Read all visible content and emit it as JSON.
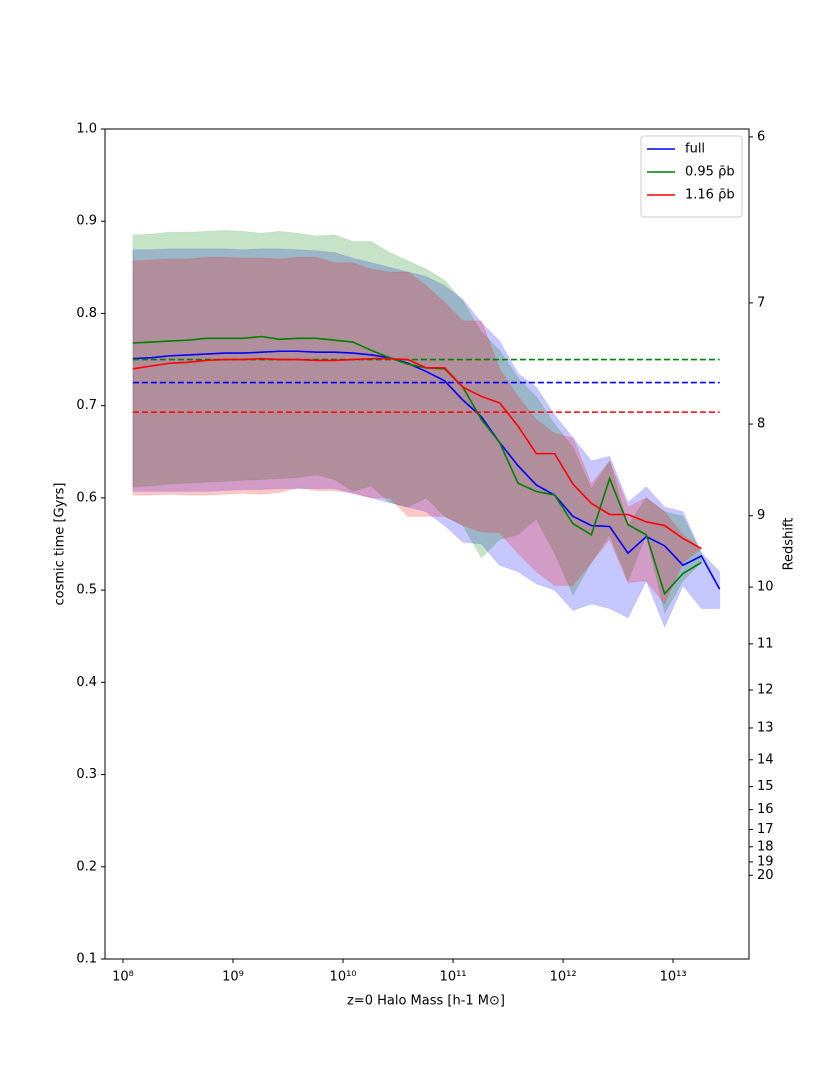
{
  "chart_data": {
    "type": "line",
    "x_label": "z=0 Halo Mass [h-1 M⊙]",
    "y_label": "cosmic time [Gyrs]",
    "y2_label": "Redshift",
    "x_log": true,
    "xlim": [
      68600000.0,
      49000000000000.0
    ],
    "xticks": [
      {
        "value": 100000000.0,
        "label": "10⁸"
      },
      {
        "value": 1000000000.0,
        "label": "10⁹"
      },
      {
        "value": 10000000000.0,
        "label": "10¹⁰"
      },
      {
        "value": 100000000000.0,
        "label": "10¹¹"
      },
      {
        "value": 1000000000000.0,
        "label": "10¹²"
      },
      {
        "value": 10000000000000.0,
        "label": "10¹³"
      }
    ],
    "ylim": [
      0.1,
      1.0
    ],
    "yticks": [
      0.1,
      0.2,
      0.3,
      0.4,
      0.5,
      0.6,
      0.7,
      0.8,
      0.9,
      {
        "value": 1.0,
        "label": "1.0"
      }
    ],
    "y2scale": "cosmic-time",
    "y2lim": [
      31.3,
      5.96
    ],
    "y2ticks": [
      6,
      7,
      8,
      9,
      10,
      11,
      12,
      13,
      14,
      15,
      16,
      17,
      18,
      19,
      20
    ],
    "legend": "upper right",
    "x": [
      123000000.0,
      181000000.0,
      265000000.0,
      389000000.0,
      571000000.0,
      838000000.0,
      1230000000.0,
      1810000000.0,
      2650000000.0,
      3890000000.0,
      5710000000.0,
      8380000000.0,
      12300000000.0,
      18100000000.0,
      26500000000.0,
      38900000000.0,
      57100000000.0,
      83800000000.0,
      123000000000.0,
      181000000000.0,
      265000000000.0,
      389000000000.0,
      571000000000.0,
      838000000000.0,
      1230000000000.0,
      1810000000000.0,
      2650000000000.0,
      3890000000000.0,
      5710000000000.0,
      8380000000000.0,
      12300000000000.0,
      18100000000000.0,
      26500000000000.0
    ],
    "series": [
      {
        "name": "full",
        "color": "#0000ff",
        "reference": 0.725,
        "values": [
          0.751,
          0.752,
          0.754,
          0.755,
          0.756,
          0.757,
          0.757,
          0.758,
          0.759,
          0.759,
          0.758,
          0.758,
          0.757,
          0.755,
          0.752,
          0.746,
          0.737,
          0.727,
          0.706,
          0.688,
          0.66,
          0.635,
          0.614,
          0.603,
          0.58,
          0.57,
          0.569,
          0.54,
          0.558,
          0.548,
          0.527,
          0.537,
          0.501
        ],
        "upper": [
          0.869,
          0.869,
          0.87,
          0.87,
          0.87,
          0.87,
          0.869,
          0.87,
          0.87,
          0.869,
          0.868,
          0.866,
          0.86,
          0.855,
          0.85,
          0.845,
          0.84,
          0.83,
          0.815,
          0.79,
          0.77,
          0.735,
          0.72,
          0.69,
          0.665,
          0.64,
          0.645,
          0.595,
          0.612,
          0.59,
          0.585,
          0.54,
          0.52
        ],
        "lower": [
          0.607,
          0.607,
          0.607,
          0.607,
          0.607,
          0.608,
          0.609,
          0.609,
          0.61,
          0.61,
          0.61,
          0.61,
          0.605,
          0.6,
          0.595,
          0.59,
          0.585,
          0.57,
          0.552,
          0.55,
          0.527,
          0.52,
          0.507,
          0.5,
          0.478,
          0.485,
          0.48,
          0.47,
          0.51,
          0.46,
          0.505,
          0.48,
          0.48
        ]
      },
      {
        "name": "0.95 ρ̄b",
        "color": "#008000",
        "reference": 0.75,
        "values": [
          0.768,
          0.769,
          0.77,
          0.771,
          0.773,
          0.773,
          0.773,
          0.775,
          0.772,
          0.773,
          0.773,
          0.771,
          0.769,
          0.76,
          0.752,
          0.745,
          0.741,
          0.74,
          0.72,
          0.685,
          0.66,
          0.616,
          0.607,
          0.603,
          0.572,
          0.56,
          0.621,
          0.571,
          0.56,
          0.496,
          0.518,
          0.53,
          null
        ],
        "upper": [
          0.885,
          0.886,
          0.888,
          0.888,
          0.889,
          0.89,
          0.889,
          0.887,
          0.889,
          0.887,
          0.884,
          0.885,
          0.878,
          0.878,
          0.866,
          0.857,
          0.848,
          0.836,
          0.813,
          0.78,
          0.76,
          0.73,
          0.71,
          0.68,
          0.655,
          0.61,
          0.64,
          0.57,
          0.6,
          0.585,
          0.58,
          0.54,
          null
        ],
        "lower": [
          0.612,
          0.613,
          0.615,
          0.616,
          0.617,
          0.618,
          0.619,
          0.62,
          0.621,
          0.622,
          0.625,
          0.62,
          0.607,
          0.613,
          0.595,
          0.59,
          0.6,
          0.58,
          0.57,
          0.535,
          0.555,
          0.56,
          0.577,
          0.54,
          0.495,
          0.53,
          0.56,
          0.51,
          0.56,
          0.475,
          0.51,
          0.53,
          null
        ]
      },
      {
        "name": "1.16 ρ̄b",
        "color": "#ff0000",
        "reference": 0.693,
        "values": [
          0.74,
          0.743,
          0.746,
          0.747,
          0.749,
          0.75,
          0.75,
          0.751,
          0.75,
          0.75,
          0.749,
          0.749,
          0.75,
          0.751,
          0.751,
          0.75,
          0.741,
          0.741,
          0.72,
          0.71,
          0.703,
          0.678,
          0.648,
          0.648,
          0.615,
          0.594,
          0.582,
          0.582,
          0.574,
          0.57,
          0.556,
          0.545,
          null
        ],
        "upper": [
          0.857,
          0.858,
          0.859,
          0.859,
          0.861,
          0.861,
          0.86,
          0.86,
          0.859,
          0.861,
          0.861,
          0.855,
          0.855,
          0.848,
          0.845,
          0.845,
          0.83,
          0.812,
          0.792,
          0.792,
          0.74,
          0.71,
          0.685,
          0.67,
          0.665,
          0.615,
          0.64,
          0.59,
          0.6,
          0.585,
          0.56,
          0.545,
          null
        ],
        "lower": [
          0.603,
          0.603,
          0.604,
          0.603,
          0.603,
          0.604,
          0.605,
          0.604,
          0.606,
          0.611,
          0.608,
          0.608,
          0.605,
          0.6,
          0.6,
          0.58,
          0.58,
          0.58,
          0.57,
          0.563,
          0.562,
          0.54,
          0.52,
          0.505,
          0.505,
          0.53,
          0.555,
          0.508,
          0.51,
          0.485,
          0.53,
          0.545,
          null
        ]
      }
    ]
  }
}
